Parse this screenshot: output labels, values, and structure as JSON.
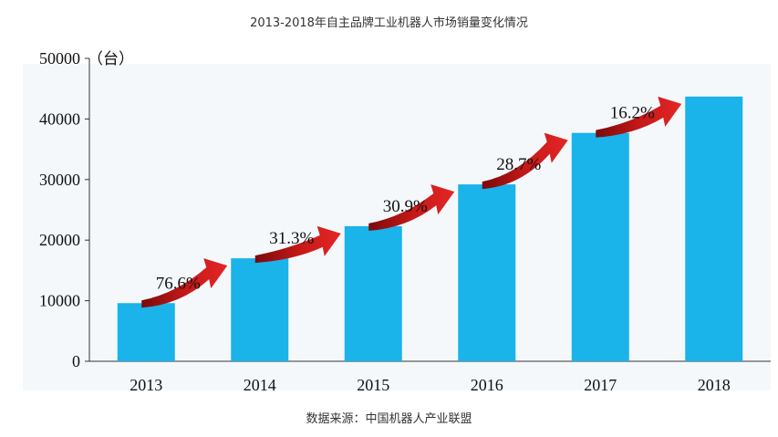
{
  "chart_data": {
    "type": "bar",
    "title": "2013-2018年自主品牌工业机器人市场销量变化情况",
    "ylabel": "（台）",
    "categories": [
      "2013",
      "2014",
      "2015",
      "2016",
      "2017",
      "2018"
    ],
    "values": [
      9600,
      17000,
      22300,
      29200,
      37700,
      43700
    ],
    "growth_labels": [
      "76.6%",
      "31.3%",
      "30.9%",
      "28.7%",
      "16.2%"
    ],
    "ylim": [
      0,
      50000
    ],
    "yticks": [
      "0",
      "10000",
      "20000",
      "30000",
      "40000",
      "50000"
    ],
    "bar_color": "#1ab3ea",
    "arrow_color": "#d81f1f",
    "grid": false,
    "source": "数据来源：中国机器人产业联盟"
  }
}
